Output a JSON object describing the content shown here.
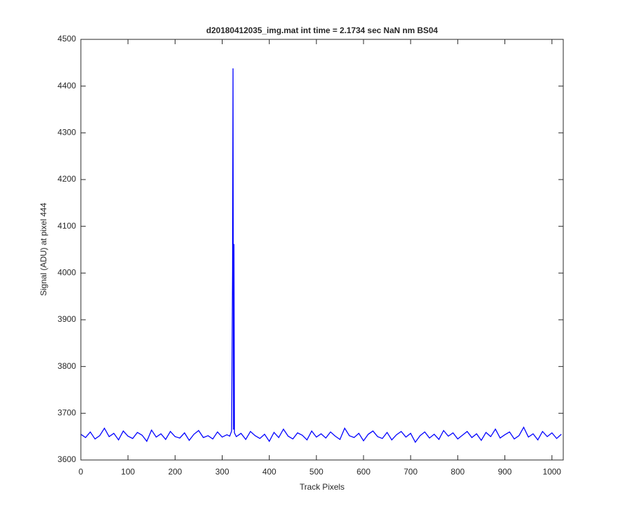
{
  "chart_data": {
    "type": "line",
    "title": "d20180412035_img.mat int time = 2.1734 sec  NaN nm BS04",
    "x_label": "Track Pixels",
    "y_label": "Signal (ADU) at pixel 444",
    "xlim": [
      0,
      1024
    ],
    "ylim": [
      3600,
      4500
    ],
    "xticks": [
      0,
      100,
      200,
      300,
      400,
      500,
      600,
      700,
      800,
      900,
      1000
    ],
    "yticks": [
      3600,
      3700,
      3800,
      3900,
      4000,
      4100,
      4200,
      4300,
      4400,
      4500
    ],
    "grid": false,
    "x": [
      0,
      10,
      20,
      30,
      40,
      50,
      60,
      70,
      80,
      90,
      100,
      110,
      120,
      130,
      140,
      150,
      160,
      170,
      180,
      190,
      200,
      210,
      220,
      230,
      240,
      250,
      260,
      270,
      280,
      290,
      300,
      310,
      316,
      320,
      322,
      323,
      324,
      325,
      326,
      330,
      340,
      350,
      360,
      370,
      380,
      390,
      400,
      410,
      420,
      430,
      440,
      450,
      460,
      470,
      480,
      490,
      500,
      510,
      520,
      530,
      540,
      550,
      560,
      570,
      580,
      590,
      600,
      610,
      620,
      630,
      640,
      650,
      660,
      670,
      680,
      690,
      700,
      710,
      720,
      730,
      740,
      750,
      760,
      770,
      780,
      790,
      800,
      810,
      820,
      830,
      840,
      850,
      860,
      870,
      880,
      890,
      900,
      910,
      920,
      930,
      940,
      950,
      960,
      970,
      980,
      990,
      1000,
      1010,
      1020
    ],
    "series": [
      {
        "color": "#0000ff",
        "values": [
          3655,
          3648,
          3660,
          3645,
          3652,
          3668,
          3650,
          3657,
          3643,
          3662,
          3651,
          3646,
          3659,
          3653,
          3640,
          3664,
          3649,
          3656,
          3644,
          3661,
          3650,
          3647,
          3658,
          3642,
          3655,
          3663,
          3648,
          3652,
          3645,
          3660,
          3649,
          3654,
          3651,
          3662,
          4005,
          4438,
          3665,
          4062,
          3658,
          3650,
          3657,
          3644,
          3661,
          3652,
          3646,
          3655,
          3640,
          3659,
          3648,
          3666,
          3651,
          3645,
          3658,
          3653,
          3643,
          3662,
          3649,
          3656,
          3647,
          3660,
          3651,
          3644,
          3668,
          3652,
          3648,
          3657,
          3641,
          3655,
          3662,
          3650,
          3646,
          3659,
          3643,
          3654,
          3661,
          3649,
          3657,
          3638,
          3652,
          3660,
          3647,
          3655,
          3644,
          3663,
          3651,
          3658,
          3645,
          3653,
          3661,
          3648,
          3656,
          3642,
          3659,
          3650,
          3666,
          3647,
          3654,
          3660,
          3645,
          3652,
          3670,
          3649,
          3656,
          3643,
          3661,
          3650,
          3658,
          3646,
          3655
        ]
      }
    ]
  }
}
